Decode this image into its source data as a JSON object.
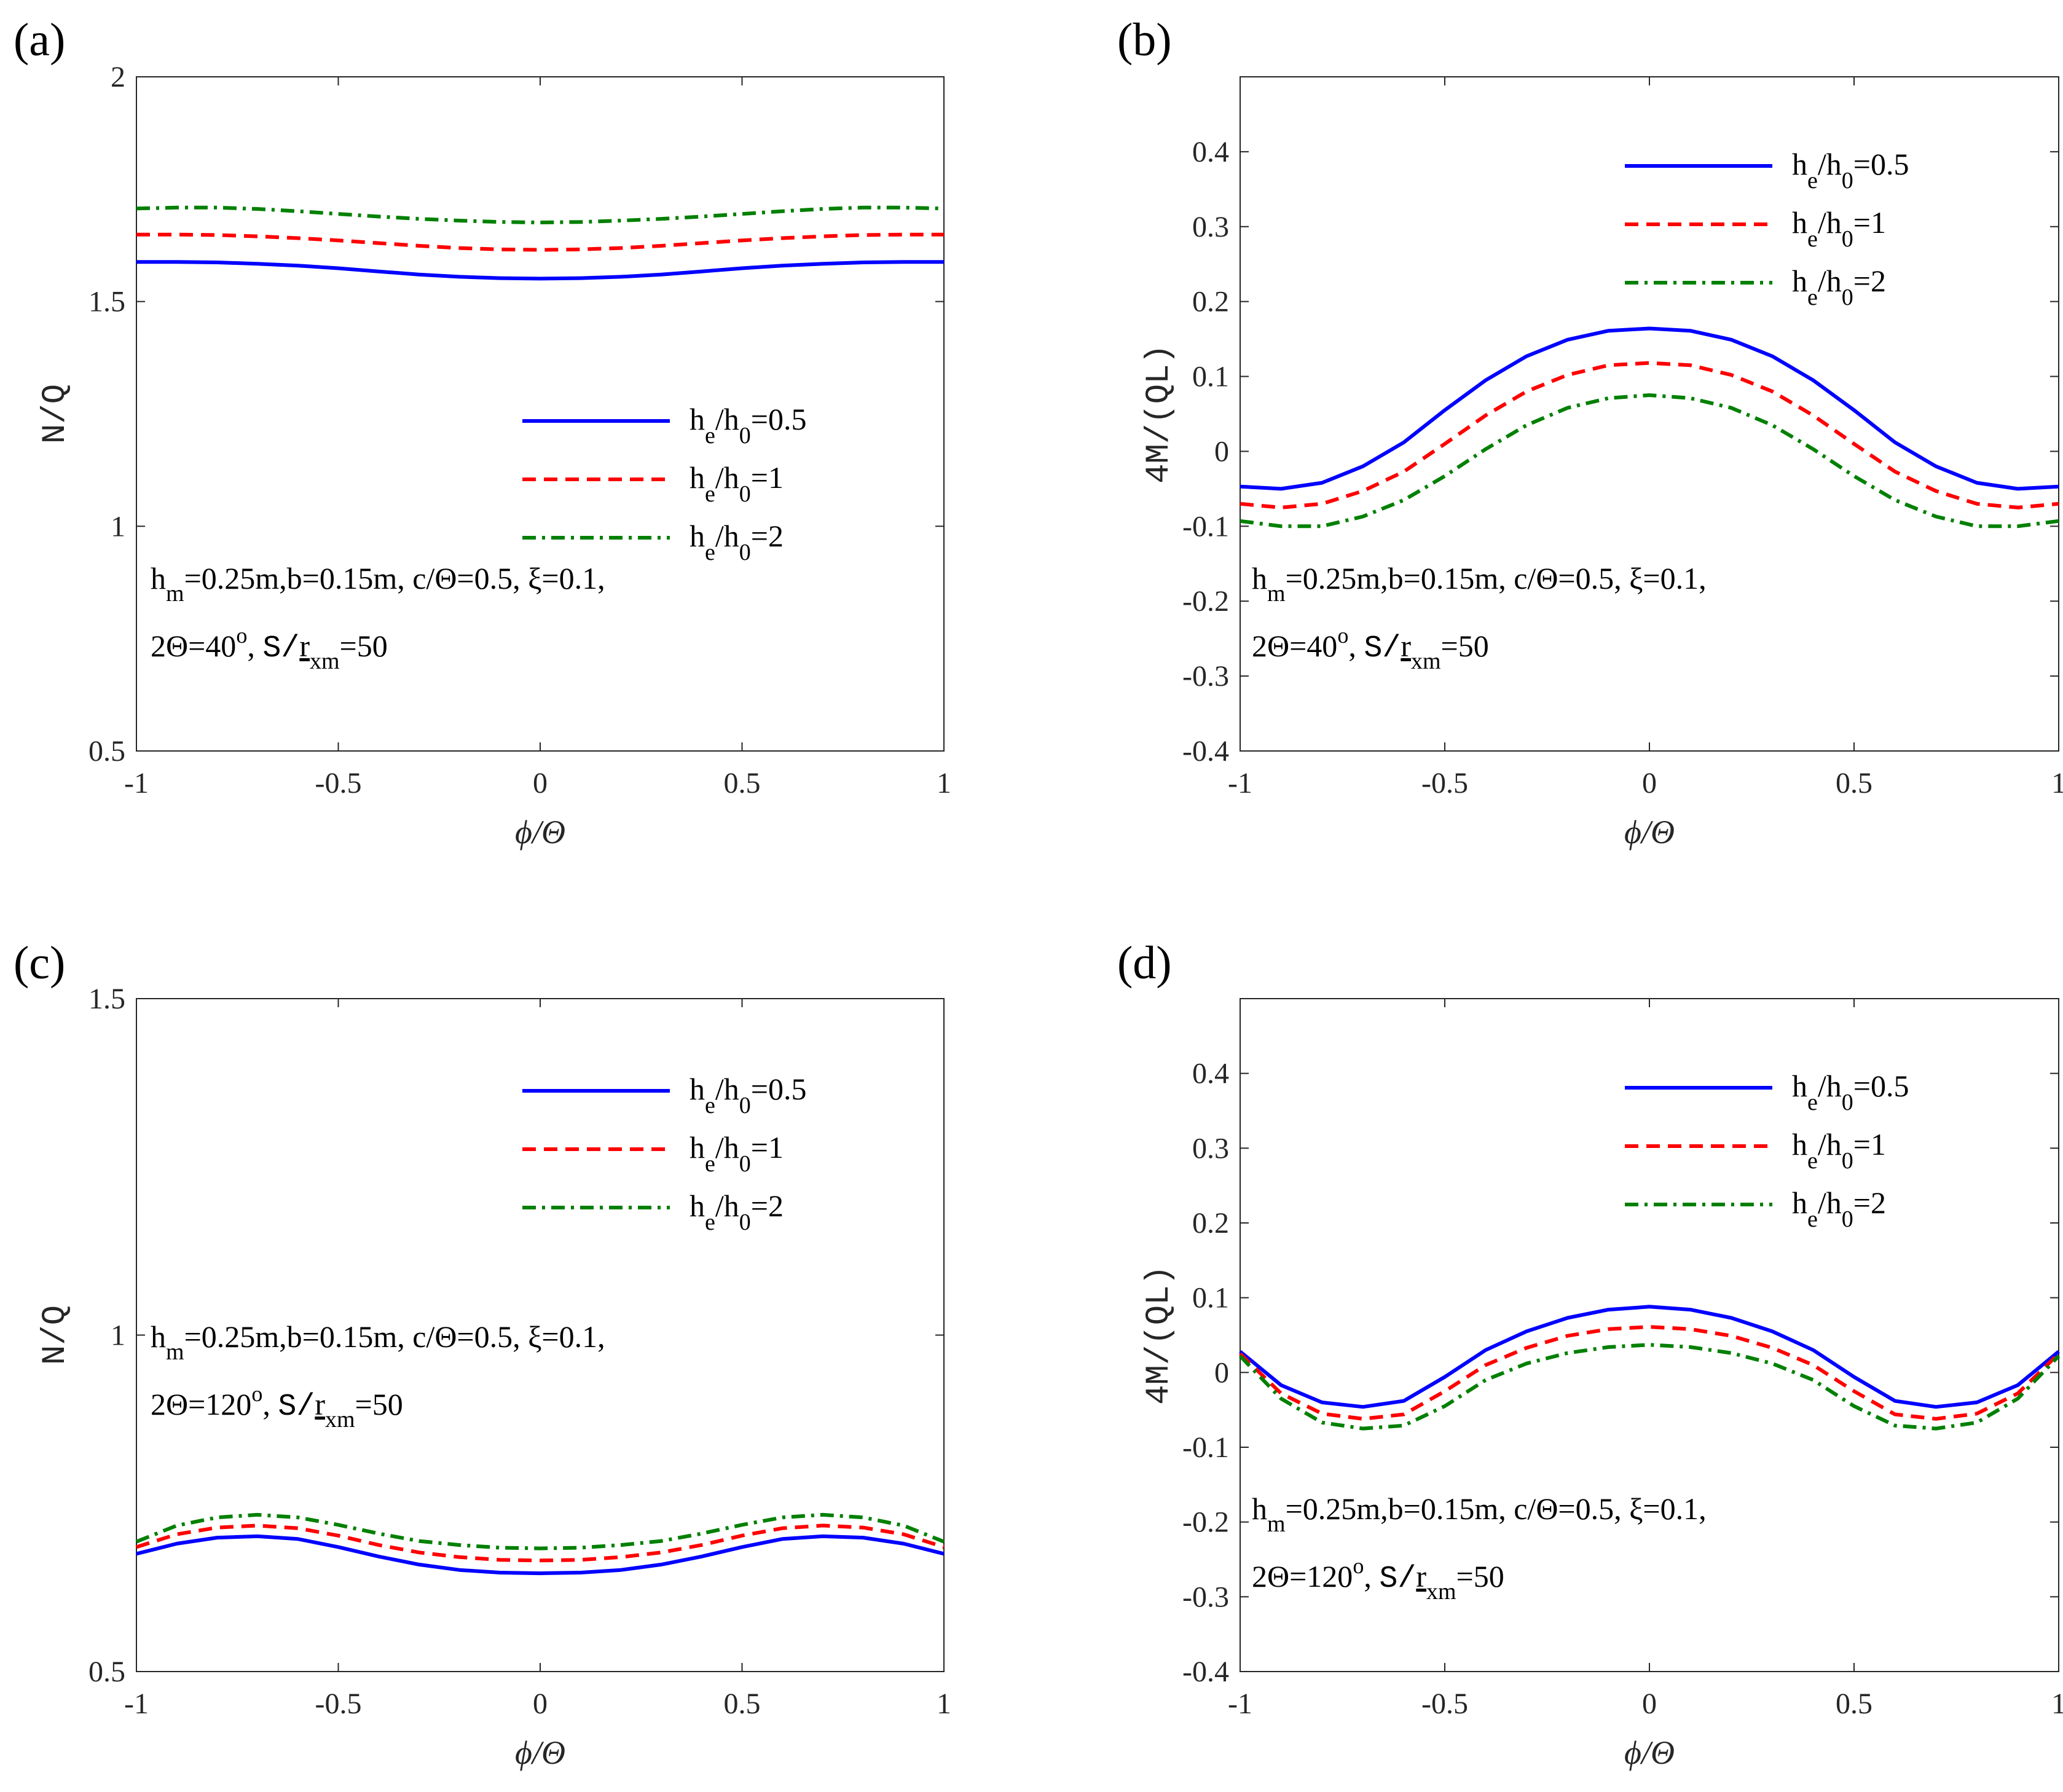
{
  "figure": {
    "series_names": [
      "h_e/h_0=0.5",
      "h_e/h_0=1",
      "h_e/h_0=2"
    ],
    "series_colors": [
      "#0000ff",
      "#ff0000",
      "#008000"
    ],
    "series_styles": [
      "solid",
      "dashed",
      "dashdot"
    ]
  },
  "chart_data": [
    {
      "panel": "(a)",
      "type": "line",
      "xlabel": "ϕ/Θ",
      "ylabel": "N/Q",
      "xlim": [
        -1,
        1
      ],
      "ylim": [
        0.5,
        2
      ],
      "xticks": [
        "-1",
        "-0.5",
        "0",
        "0.5",
        "1"
      ],
      "yticks": [
        "0.5",
        "1",
        "1.5",
        "2"
      ],
      "ytick_values": [
        0.5,
        1,
        1.5,
        2
      ],
      "legend_position": "middle-right",
      "legend": [
        "h_e/h_0=0.5",
        "h_e/h_0=1",
        "h_e/h_0=2"
      ],
      "annotation": {
        "line1": "h_m=0.25m,b=0.15m, c/Θ=0.5, ξ=0.1,",
        "line2": "2Θ=40°, S/r_xm=50"
      },
      "x": [
        -1,
        -0.9,
        -0.8,
        -0.7,
        -0.6,
        -0.5,
        -0.4,
        -0.3,
        -0.2,
        -0.1,
        0,
        0.1,
        0.2,
        0.3,
        0.4,
        0.5,
        0.6,
        0.7,
        0.8,
        0.9,
        1
      ],
      "series": [
        {
          "name": "h_e/h_0=0.5",
          "values": [
            1.588,
            1.588,
            1.587,
            1.584,
            1.58,
            1.574,
            1.567,
            1.56,
            1.555,
            1.552,
            1.551,
            1.552,
            1.555,
            1.56,
            1.567,
            1.574,
            1.58,
            1.584,
            1.587,
            1.588,
            1.588
          ]
        },
        {
          "name": "h_e/h_0=1",
          "values": [
            1.649,
            1.649,
            1.648,
            1.645,
            1.641,
            1.636,
            1.63,
            1.624,
            1.619,
            1.616,
            1.615,
            1.616,
            1.619,
            1.624,
            1.63,
            1.636,
            1.641,
            1.645,
            1.648,
            1.649,
            1.649
          ]
        },
        {
          "name": "h_e/h_0=2",
          "values": [
            1.707,
            1.709,
            1.709,
            1.706,
            1.701,
            1.695,
            1.689,
            1.684,
            1.68,
            1.677,
            1.676,
            1.677,
            1.68,
            1.684,
            1.689,
            1.695,
            1.701,
            1.706,
            1.709,
            1.709,
            1.707
          ]
        }
      ]
    },
    {
      "panel": "(b)",
      "type": "line",
      "xlabel": "ϕ/Θ",
      "ylabel": "4M/(QL)",
      "xlim": [
        -1,
        1
      ],
      "ylim": [
        -0.4,
        0.5
      ],
      "xticks": [
        "-1",
        "-0.5",
        "0",
        "0.5",
        "1"
      ],
      "yticks": [
        "-0.4",
        "-0.3",
        "-0.2",
        "-0.1",
        "0",
        "0.1",
        "0.2",
        "0.3",
        "0.4"
      ],
      "ytick_values": [
        -0.4,
        -0.3,
        -0.2,
        -0.1,
        0,
        0.1,
        0.2,
        0.3,
        0.4
      ],
      "legend_position": "top-right",
      "legend": [
        "h_e/h_0=0.5",
        "h_e/h_0=1",
        "h_e/h_0=2"
      ],
      "annotation": {
        "line1": "h_m=0.25m,b=0.15m, c/Θ=0.5, ξ=0.1,",
        "line2": "2Θ=40°, S/r_xm=50"
      },
      "x": [
        -1,
        -0.9,
        -0.8,
        -0.7,
        -0.6,
        -0.5,
        -0.4,
        -0.3,
        -0.2,
        -0.1,
        0,
        0.1,
        0.2,
        0.3,
        0.4,
        0.5,
        0.6,
        0.7,
        0.8,
        0.9,
        1
      ],
      "series": [
        {
          "name": "h_e/h_0=0.5",
          "values": [
            -0.047,
            -0.05,
            -0.042,
            -0.02,
            0.012,
            0.055,
            0.095,
            0.127,
            0.149,
            0.161,
            0.164,
            0.161,
            0.149,
            0.127,
            0.095,
            0.055,
            0.012,
            -0.02,
            -0.042,
            -0.05,
            -0.047
          ]
        },
        {
          "name": "h_e/h_0=1",
          "values": [
            -0.07,
            -0.075,
            -0.07,
            -0.053,
            -0.027,
            0.01,
            0.048,
            0.08,
            0.102,
            0.115,
            0.118,
            0.115,
            0.102,
            0.08,
            0.048,
            0.01,
            -0.027,
            -0.053,
            -0.07,
            -0.075,
            -0.07
          ]
        },
        {
          "name": "h_e/h_0=2",
          "values": [
            -0.093,
            -0.1,
            -0.1,
            -0.087,
            -0.065,
            -0.033,
            0.003,
            0.035,
            0.058,
            0.071,
            0.075,
            0.071,
            0.058,
            0.035,
            0.003,
            -0.033,
            -0.065,
            -0.087,
            -0.1,
            -0.1,
            -0.093
          ]
        }
      ]
    },
    {
      "panel": "(c)",
      "type": "line",
      "xlabel": "ϕ/Θ",
      "ylabel": "N/Q",
      "xlim": [
        -1,
        1
      ],
      "ylim": [
        0.5,
        1.5
      ],
      "xticks": [
        "-1",
        "-0.5",
        "0",
        "0.5",
        "1"
      ],
      "yticks": [
        "0.5",
        "1",
        "1.5"
      ],
      "ytick_values": [
        0.5,
        1,
        1.5
      ],
      "legend_position": "top-right",
      "legend": [
        "h_e/h_0=0.5",
        "h_e/h_0=1",
        "h_e/h_0=2"
      ],
      "annotation": {
        "line1": "h_m=0.25m,b=0.15m, c/Θ=0.5, ξ=0.1,",
        "line2": "2Θ=120°, S/r_xm=50"
      },
      "x": [
        -1,
        -0.9,
        -0.8,
        -0.7,
        -0.6,
        -0.5,
        -0.4,
        -0.3,
        -0.2,
        -0.1,
        0,
        0.1,
        0.2,
        0.3,
        0.4,
        0.5,
        0.6,
        0.7,
        0.8,
        0.9,
        1
      ],
      "series": [
        {
          "name": "h_e/h_0=0.5",
          "values": [
            0.675,
            0.69,
            0.699,
            0.701,
            0.697,
            0.685,
            0.671,
            0.659,
            0.651,
            0.647,
            0.646,
            0.647,
            0.651,
            0.659,
            0.671,
            0.685,
            0.697,
            0.701,
            0.699,
            0.69,
            0.675
          ]
        },
        {
          "name": "h_e/h_0=1",
          "values": [
            0.685,
            0.704,
            0.714,
            0.717,
            0.713,
            0.702,
            0.688,
            0.677,
            0.67,
            0.666,
            0.665,
            0.666,
            0.67,
            0.677,
            0.688,
            0.702,
            0.713,
            0.717,
            0.714,
            0.704,
            0.685
          ]
        },
        {
          "name": "h_e/h_0=2",
          "values": [
            0.693,
            0.717,
            0.729,
            0.733,
            0.729,
            0.718,
            0.705,
            0.694,
            0.688,
            0.684,
            0.683,
            0.684,
            0.688,
            0.694,
            0.705,
            0.718,
            0.729,
            0.733,
            0.729,
            0.717,
            0.693
          ]
        }
      ]
    },
    {
      "panel": "(d)",
      "type": "line",
      "xlabel": "ϕ/Θ",
      "ylabel": "4M/(QL)",
      "xlim": [
        -1,
        1
      ],
      "ylim": [
        -0.4,
        0.5
      ],
      "xticks": [
        "-1",
        "-0.5",
        "0",
        "0.5",
        "1"
      ],
      "yticks": [
        "-0.4",
        "-0.3",
        "-0.2",
        "-0.1",
        "0",
        "0.1",
        "0.2",
        "0.3",
        "0.4"
      ],
      "ytick_values": [
        -0.4,
        -0.3,
        -0.2,
        -0.1,
        0,
        0.1,
        0.2,
        0.3,
        0.4
      ],
      "legend_position": "top-right",
      "legend": [
        "h_e/h_0=0.5",
        "h_e/h_0=1",
        "h_e/h_0=2"
      ],
      "annotation": {
        "line1": "h_m=0.25m,b=0.15m, c/Θ=0.5, ξ=0.1,",
        "line2": "2Θ=120°, S/r_xm=50"
      },
      "x": [
        -1,
        -0.9,
        -0.8,
        -0.7,
        -0.6,
        -0.5,
        -0.4,
        -0.3,
        -0.2,
        -0.1,
        0,
        0.1,
        0.2,
        0.3,
        0.4,
        0.5,
        0.6,
        0.7,
        0.8,
        0.9,
        1
      ],
      "series": [
        {
          "name": "h_e/h_0=0.5",
          "values": [
            0.028,
            -0.017,
            -0.04,
            -0.046,
            -0.038,
            -0.006,
            0.03,
            0.055,
            0.073,
            0.084,
            0.088,
            0.084,
            0.073,
            0.055,
            0.03,
            -0.006,
            -0.038,
            -0.046,
            -0.04,
            -0.017,
            0.028
          ]
        },
        {
          "name": "h_e/h_0=1",
          "values": [
            0.025,
            -0.028,
            -0.055,
            -0.062,
            -0.056,
            -0.025,
            0.01,
            0.033,
            0.049,
            0.058,
            0.061,
            0.058,
            0.049,
            0.033,
            0.01,
            -0.025,
            -0.056,
            -0.062,
            -0.055,
            -0.028,
            0.025
          ]
        },
        {
          "name": "h_e/h_0=2",
          "values": [
            0.022,
            -0.035,
            -0.067,
            -0.075,
            -0.071,
            -0.045,
            -0.01,
            0.012,
            0.026,
            0.034,
            0.037,
            0.034,
            0.026,
            0.012,
            -0.01,
            -0.045,
            -0.071,
            -0.075,
            -0.067,
            -0.035,
            0.022
          ]
        }
      ]
    }
  ]
}
